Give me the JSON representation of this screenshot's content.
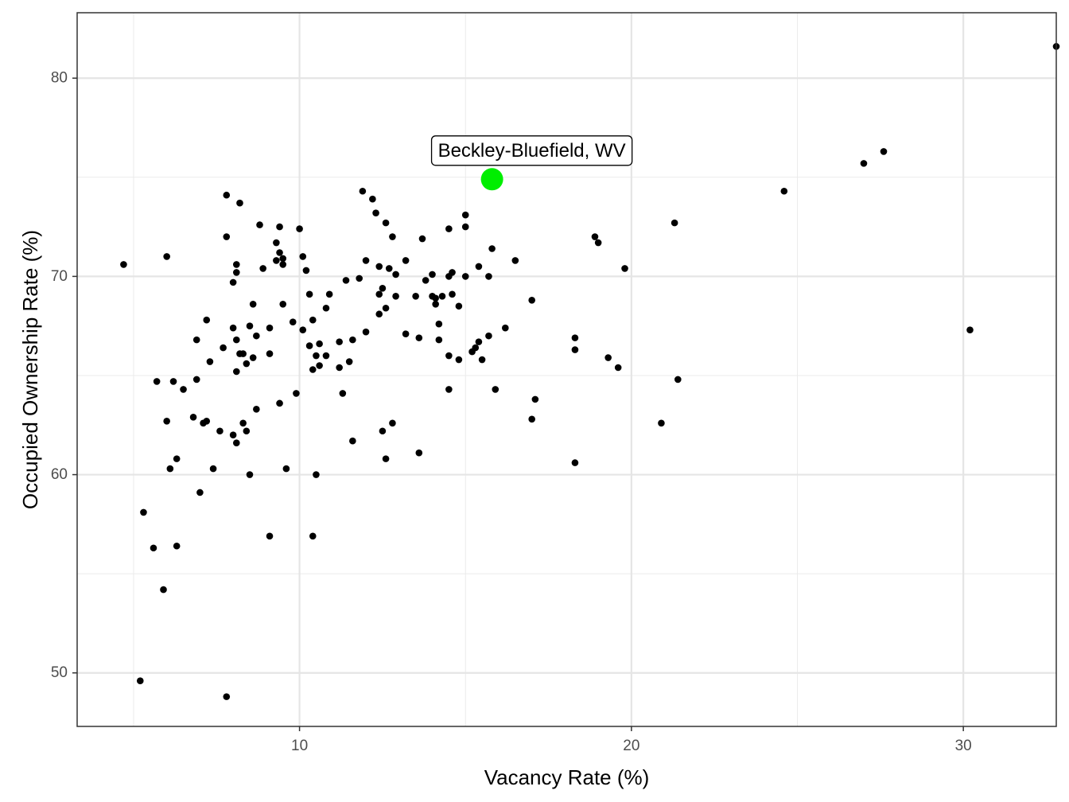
{
  "chart_data": {
    "type": "scatter",
    "title": "",
    "xlabel": "Vacancy Rate (%)",
    "ylabel": "Occupied Ownership Rate (%)",
    "xlim": [
      3.3,
      32.8
    ],
    "ylim": [
      47.3,
      83.3
    ],
    "x_ticks": [
      10,
      20,
      30
    ],
    "y_ticks": [
      50,
      60,
      70,
      80
    ],
    "x_minor": [
      5,
      15,
      25
    ],
    "y_minor": [
      55,
      65,
      75
    ],
    "grid": true,
    "point_color": "#000000",
    "highlight_color": "#00ee00",
    "highlight": {
      "label": "Beckley-Bluefield, WV",
      "x": 15.8,
      "y": 74.9
    },
    "points": [
      [
        4.7,
        70.6
      ],
      [
        5.2,
        49.6
      ],
      [
        5.3,
        58.1
      ],
      [
        5.6,
        56.3
      ],
      [
        5.7,
        64.7
      ],
      [
        5.9,
        54.2
      ],
      [
        6.0,
        62.7
      ],
      [
        6.0,
        71.0
      ],
      [
        6.1,
        60.3
      ],
      [
        6.2,
        64.7
      ],
      [
        6.3,
        60.8
      ],
      [
        6.3,
        56.4
      ],
      [
        6.5,
        64.3
      ],
      [
        6.8,
        62.9
      ],
      [
        6.9,
        66.8
      ],
      [
        6.9,
        64.8
      ],
      [
        7.0,
        59.1
      ],
      [
        7.1,
        62.6
      ],
      [
        7.2,
        62.7
      ],
      [
        7.2,
        67.8
      ],
      [
        7.3,
        65.7
      ],
      [
        7.4,
        60.3
      ],
      [
        7.6,
        62.2
      ],
      [
        7.7,
        66.4
      ],
      [
        7.8,
        74.1
      ],
      [
        7.8,
        48.8
      ],
      [
        7.8,
        72.0
      ],
      [
        8.0,
        62.0
      ],
      [
        8.0,
        69.7
      ],
      [
        8.1,
        70.2
      ],
      [
        8.0,
        67.4
      ],
      [
        8.1,
        70.6
      ],
      [
        8.1,
        66.8
      ],
      [
        8.1,
        65.2
      ],
      [
        8.1,
        61.6
      ],
      [
        8.2,
        73.7
      ],
      [
        8.2,
        66.1
      ],
      [
        8.3,
        62.6
      ],
      [
        8.3,
        66.1
      ],
      [
        8.4,
        65.6
      ],
      [
        8.4,
        62.2
      ],
      [
        8.5,
        67.5
      ],
      [
        8.5,
        60.0
      ],
      [
        8.6,
        68.6
      ],
      [
        8.6,
        65.9
      ],
      [
        8.7,
        63.3
      ],
      [
        8.7,
        67.0
      ],
      [
        8.8,
        72.6
      ],
      [
        8.9,
        70.4
      ],
      [
        9.1,
        67.4
      ],
      [
        9.1,
        56.9
      ],
      [
        9.1,
        66.1
      ],
      [
        9.3,
        71.7
      ],
      [
        9.3,
        70.8
      ],
      [
        9.4,
        72.5
      ],
      [
        9.4,
        71.2
      ],
      [
        9.4,
        63.6
      ],
      [
        9.5,
        70.9
      ],
      [
        9.5,
        68.6
      ],
      [
        9.5,
        70.6
      ],
      [
        9.6,
        60.3
      ],
      [
        9.8,
        67.7
      ],
      [
        9.9,
        64.1
      ],
      [
        10.0,
        72.4
      ],
      [
        10.1,
        67.3
      ],
      [
        10.1,
        71.0
      ],
      [
        10.2,
        70.3
      ],
      [
        10.3,
        66.5
      ],
      [
        10.3,
        69.1
      ],
      [
        10.4,
        65.3
      ],
      [
        10.4,
        67.8
      ],
      [
        10.4,
        56.9
      ],
      [
        10.5,
        66.0
      ],
      [
        10.5,
        60.0
      ],
      [
        10.6,
        65.5
      ],
      [
        10.6,
        66.6
      ],
      [
        10.8,
        66.0
      ],
      [
        10.8,
        68.4
      ],
      [
        10.9,
        69.1
      ],
      [
        11.2,
        66.7
      ],
      [
        11.2,
        65.4
      ],
      [
        11.3,
        64.1
      ],
      [
        11.4,
        69.8
      ],
      [
        11.5,
        65.7
      ],
      [
        11.6,
        66.8
      ],
      [
        11.6,
        61.7
      ],
      [
        11.8,
        69.9
      ],
      [
        11.9,
        74.3
      ],
      [
        12.0,
        67.2
      ],
      [
        12.0,
        70.8
      ],
      [
        12.2,
        73.9
      ],
      [
        12.3,
        73.2
      ],
      [
        12.4,
        70.5
      ],
      [
        12.4,
        69.1
      ],
      [
        12.4,
        68.1
      ],
      [
        12.5,
        62.2
      ],
      [
        12.5,
        69.4
      ],
      [
        12.6,
        68.4
      ],
      [
        12.6,
        72.7
      ],
      [
        12.6,
        60.8
      ],
      [
        12.7,
        70.4
      ],
      [
        12.8,
        72.0
      ],
      [
        12.8,
        62.6
      ],
      [
        12.9,
        70.1
      ],
      [
        12.9,
        69.0
      ],
      [
        13.2,
        70.8
      ],
      [
        13.2,
        67.1
      ],
      [
        13.5,
        69.0
      ],
      [
        13.6,
        66.9
      ],
      [
        13.6,
        61.1
      ],
      [
        13.7,
        71.9
      ],
      [
        13.8,
        69.8
      ],
      [
        14.0,
        69.0
      ],
      [
        14.0,
        70.1
      ],
      [
        14.1,
        68.6
      ],
      [
        14.1,
        68.9
      ],
      [
        14.2,
        66.8
      ],
      [
        14.2,
        67.6
      ],
      [
        14.3,
        69.0
      ],
      [
        14.5,
        72.4
      ],
      [
        14.5,
        70.0
      ],
      [
        14.5,
        66.0
      ],
      [
        14.5,
        64.3
      ],
      [
        14.6,
        70.2
      ],
      [
        14.6,
        69.1
      ],
      [
        14.8,
        68.5
      ],
      [
        14.8,
        65.8
      ],
      [
        15.0,
        73.1
      ],
      [
        15.0,
        72.5
      ],
      [
        15.0,
        70.0
      ],
      [
        15.2,
        66.2
      ],
      [
        15.3,
        66.4
      ],
      [
        15.4,
        66.7
      ],
      [
        15.4,
        70.5
      ],
      [
        15.5,
        65.8
      ],
      [
        15.7,
        70.0
      ],
      [
        15.8,
        71.4
      ],
      [
        15.7,
        67.0
      ],
      [
        15.9,
        64.3
      ],
      [
        16.2,
        67.4
      ],
      [
        16.5,
        70.8
      ],
      [
        17.0,
        68.8
      ],
      [
        17.0,
        62.8
      ],
      [
        17.1,
        63.8
      ],
      [
        18.3,
        66.9
      ],
      [
        18.3,
        66.3
      ],
      [
        18.3,
        60.6
      ],
      [
        18.9,
        72.0
      ],
      [
        19.0,
        71.7
      ],
      [
        19.3,
        65.9
      ],
      [
        19.6,
        65.4
      ],
      [
        19.8,
        70.4
      ],
      [
        20.9,
        62.6
      ],
      [
        21.3,
        72.7
      ],
      [
        21.4,
        64.8
      ],
      [
        24.6,
        74.3
      ],
      [
        27.0,
        75.7
      ],
      [
        27.6,
        76.3
      ],
      [
        30.2,
        67.3
      ],
      [
        32.8,
        81.6
      ]
    ]
  }
}
